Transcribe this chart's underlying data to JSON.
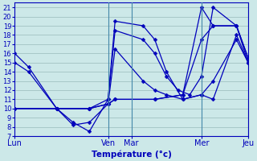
{
  "xlabel": "Température (°c)",
  "ylim": [
    7,
    21.5
  ],
  "xlim": [
    0,
    10
  ],
  "background_color": "#cce8e8",
  "grid_color": "#99bbbb",
  "line_color": "#0000bb",
  "sep_color": "#4488aa",
  "day_ticks": [
    0,
    4,
    5,
    8,
    10
  ],
  "day_labels": [
    "Lun",
    "Ven",
    "Mar",
    "Mer",
    "Jeu"
  ],
  "yticks": [
    7,
    8,
    9,
    10,
    11,
    12,
    13,
    14,
    15,
    16,
    17,
    18,
    19,
    20,
    21
  ],
  "series": [
    {
      "x": [
        0,
        0.6,
        1.8,
        2.5,
        3.2,
        4.0,
        4.3,
        5.5,
        6.0,
        6.5,
        7.0,
        7.5,
        8.0,
        8.5,
        9.5,
        10.0
      ],
      "y": [
        16,
        14.5,
        10.0,
        8.5,
        7.5,
        11.0,
        18.5,
        17.5,
        16.0,
        13.5,
        12.0,
        11.5,
        13.5,
        21.0,
        19.0,
        15.5
      ]
    },
    {
      "x": [
        0,
        0.6,
        1.8,
        2.5,
        3.2,
        4.0,
        4.3,
        5.5,
        6.0,
        6.5,
        7.2,
        8.0,
        8.5,
        9.5,
        10.0
      ],
      "y": [
        15,
        14.0,
        10.0,
        8.2,
        8.5,
        10.5,
        16.5,
        13.0,
        12.0,
        11.5,
        11.0,
        11.5,
        13.0,
        17.5,
        15.0
      ]
    },
    {
      "x": [
        0,
        1.8,
        3.2,
        4.0,
        4.3,
        5.5,
        6.0,
        6.5,
        7.2,
        8.0,
        8.5,
        9.5,
        10.0
      ],
      "y": [
        10,
        10.0,
        10.0,
        11.0,
        19.5,
        19.0,
        17.5,
        14.0,
        11.0,
        11.5,
        11.0,
        18.0,
        15.0
      ]
    },
    {
      "x": [
        0,
        1.8,
        3.2,
        4.0,
        4.3,
        6.0,
        7.2,
        8.0,
        8.5,
        9.5,
        10.0
      ],
      "y": [
        10,
        10.0,
        10.0,
        10.5,
        11.0,
        11.0,
        11.5,
        21.0,
        19.0,
        19.0,
        15.0
      ]
    },
    {
      "x": [
        0,
        1.8,
        3.2,
        4.0,
        4.3,
        6.0,
        7.2,
        8.0,
        8.5,
        9.5,
        10.0
      ],
      "y": [
        10,
        10.0,
        10.0,
        10.5,
        11.0,
        11.0,
        11.5,
        17.5,
        19.0,
        19.0,
        15.5
      ]
    }
  ]
}
